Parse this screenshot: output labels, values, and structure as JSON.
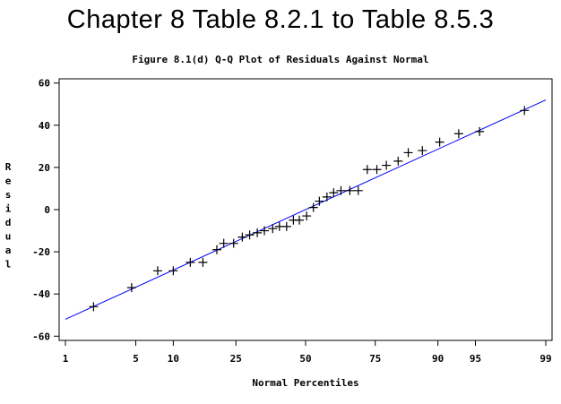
{
  "page": {
    "title": "Chapter 8 Table 8.2.1 to Table 8.5.3",
    "subtitle": "Figure 8.1(d) Q-Q Plot of Residuals Against Normal"
  },
  "chart_data": {
    "type": "scatter",
    "title": "Figure 8.1(d) Q-Q Plot of Residuals Against Normal",
    "xlabel": "Normal Percentiles",
    "ylabel": "Residual",
    "x_scale": "normal-probability",
    "x_ticks": [
      1,
      5,
      10,
      25,
      50,
      75,
      90,
      95,
      99
    ],
    "x_tick_labels": [
      "1",
      "5",
      "10",
      "25",
      "50",
      "75",
      "90",
      "95",
      "99"
    ],
    "xlim": [
      1,
      99
    ],
    "y_ticks": [
      -60,
      -40,
      -20,
      0,
      20,
      40,
      60
    ],
    "y_tick_labels": [
      "-60",
      "-40",
      "-20",
      "0",
      "20",
      "40",
      "60"
    ],
    "ylim": [
      -62,
      62
    ],
    "grid": false,
    "marker": "+",
    "colors": {
      "points": "#000000",
      "reference_line": "#0000ff",
      "axes": "#000000",
      "background": "#ffffff"
    },
    "series": [
      {
        "values": [
          {
            "x": 2.0,
            "y": -46
          },
          {
            "x": 4.6,
            "y": -37
          },
          {
            "x": 7.6,
            "y": -29
          },
          {
            "x": 10.0,
            "y": -29
          },
          {
            "x": 13.2,
            "y": -25
          },
          {
            "x": 16.0,
            "y": -25
          },
          {
            "x": 19.5,
            "y": -19
          },
          {
            "x": 21.4,
            "y": -16
          },
          {
            "x": 24.3,
            "y": -16
          },
          {
            "x": 27.0,
            "y": -13
          },
          {
            "x": 29.4,
            "y": -12
          },
          {
            "x": 32.0,
            "y": -11
          },
          {
            "x": 34.5,
            "y": -10
          },
          {
            "x": 37.5,
            "y": -9
          },
          {
            "x": 40.0,
            "y": -8
          },
          {
            "x": 42.7,
            "y": -8
          },
          {
            "x": 45.3,
            "y": -5
          },
          {
            "x": 47.6,
            "y": -5
          },
          {
            "x": 50.4,
            "y": -3
          },
          {
            "x": 53.0,
            "y": 1
          },
          {
            "x": 55.3,
            "y": 4
          },
          {
            "x": 58.2,
            "y": 6
          },
          {
            "x": 60.7,
            "y": 8
          },
          {
            "x": 63.4,
            "y": 9
          },
          {
            "x": 66.6,
            "y": 9
          },
          {
            "x": 69.5,
            "y": 9
          },
          {
            "x": 72.5,
            "y": 19
          },
          {
            "x": 75.5,
            "y": 19
          },
          {
            "x": 78.3,
            "y": 21
          },
          {
            "x": 81.5,
            "y": 23
          },
          {
            "x": 84.0,
            "y": 27
          },
          {
            "x": 87.1,
            "y": 28
          },
          {
            "x": 90.3,
            "y": 32
          },
          {
            "x": 93.1,
            "y": 36
          },
          {
            "x": 95.4,
            "y": 37
          },
          {
            "x": 98.3,
            "y": 47
          }
        ]
      }
    ],
    "reference_line": {
      "x": [
        1,
        99
      ],
      "y": [
        -52,
        52
      ]
    }
  }
}
